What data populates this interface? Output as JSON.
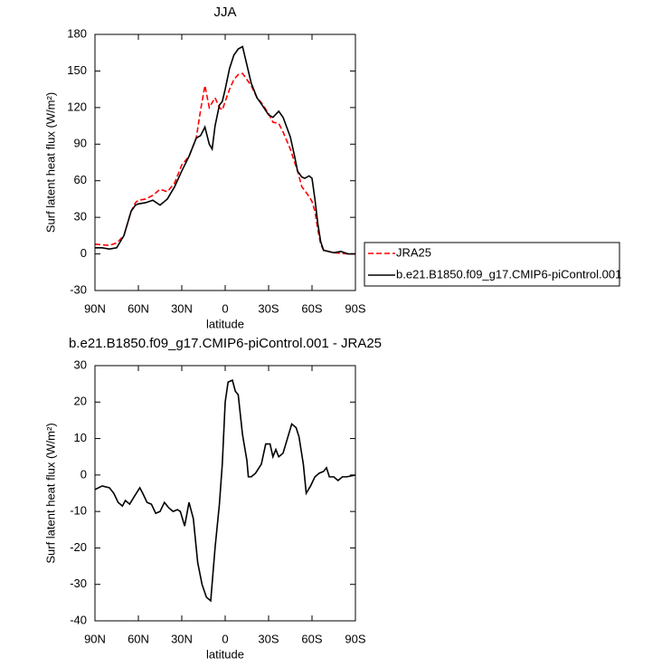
{
  "chart_data": [
    {
      "type": "line",
      "title": "JJA",
      "xlabel": "latitude",
      "ylabel": "Surf latent heat flux (W/m²)",
      "x": [
        90,
        85,
        80,
        75,
        70,
        65,
        62,
        60,
        55,
        50,
        45,
        40,
        35,
        30,
        25,
        20,
        17,
        14,
        11,
        9,
        7,
        4,
        2,
        0,
        -3,
        -6,
        -9,
        -12,
        -15,
        -18,
        -22,
        -25,
        -30,
        -33,
        -37,
        -40,
        -45,
        -48,
        -50,
        -53,
        -55,
        -58,
        -60,
        -62,
        -64,
        -66,
        -68,
        -75,
        -80,
        -85,
        -90
      ],
      "series": [
        {
          "name": "JRA25",
          "color": "#ff0000",
          "dash": "dashed",
          "values": [
            8,
            7.5,
            7,
            9,
            15,
            35,
            42,
            44,
            45,
            48,
            53,
            51,
            58,
            73,
            80,
            95,
            118,
            138,
            120,
            124,
            128,
            120,
            118,
            125,
            135,
            143,
            147,
            148,
            143,
            138,
            128,
            124,
            115,
            108,
            107,
            100,
            86,
            75,
            68,
            55,
            52,
            47,
            43,
            35,
            20,
            8,
            3,
            1,
            0.5,
            0,
            0
          ]
        },
        {
          "name": "b.e21.B1850.f09_g17.CMIP6-piControl.001",
          "color": "#000000",
          "dash": "solid",
          "values": [
            5,
            5,
            4,
            5,
            15,
            35,
            40,
            41,
            42,
            44,
            40,
            45,
            55,
            68,
            80,
            95,
            97,
            104,
            90,
            86,
            105,
            122,
            125,
            135,
            152,
            163,
            168,
            170,
            155,
            140,
            128,
            123,
            114,
            112,
            117,
            112,
            96,
            80,
            68,
            63,
            62,
            64,
            62,
            45,
            25,
            10,
            3,
            1,
            2,
            0,
            0
          ]
        }
      ],
      "xlim": [
        90,
        -90
      ],
      "xticks": [
        {
          "value": 90,
          "label": "90N"
        },
        {
          "value": 60,
          "label": "60N"
        },
        {
          "value": 30,
          "label": "30N"
        },
        0,
        {
          "value": -30,
          "label": "30S"
        },
        {
          "value": -60,
          "label": "60S"
        },
        {
          "value": -90,
          "label": "90S"
        }
      ],
      "ylim": [
        -30,
        180
      ],
      "yticks": [
        -30,
        0,
        30,
        60,
        90,
        120,
        150,
        180
      ],
      "legend": "outside-right"
    },
    {
      "type": "line",
      "title": "b.e21.B1850.f09_g17.CMIP6-piControl.001 - JRA25",
      "xlabel": "latitude",
      "ylabel": "Surf latent heat flux (W/m²)",
      "x": [
        90,
        85,
        80,
        77,
        74,
        71,
        69,
        66,
        63,
        59,
        57,
        54,
        51,
        48,
        45,
        42,
        39,
        36,
        33,
        31,
        28,
        25,
        22,
        19,
        16,
        13,
        10,
        7,
        4,
        2,
        0,
        -2,
        -5,
        -7,
        -9,
        -12,
        -15,
        -16,
        -18,
        -21,
        -25,
        -28,
        -31,
        -33,
        -35,
        -37,
        -40,
        -43,
        -46,
        -49,
        -51,
        -54,
        -56,
        -59,
        -62,
        -65,
        -68,
        -70,
        -72,
        -75,
        -78,
        -81,
        -84,
        -90
      ],
      "series": [
        {
          "color": "#000000",
          "dash": "solid",
          "values": [
            -4,
            -3,
            -3.5,
            -5,
            -7.5,
            -8.5,
            -7,
            -8,
            -6,
            -3.5,
            -5,
            -7.5,
            -8,
            -10.5,
            -10,
            -7.5,
            -9,
            -10,
            -9.5,
            -10,
            -14,
            -7.5,
            -12,
            -24,
            -30,
            -33.5,
            -34.5,
            -20,
            -8,
            3,
            20,
            25.5,
            26,
            23,
            22,
            11,
            4,
            -0.5,
            -0.5,
            0.5,
            3,
            8.5,
            8.5,
            5,
            7,
            5,
            6,
            10,
            14,
            13,
            10.5,
            3,
            -5,
            -3,
            -0.5,
            0.5,
            1,
            2,
            -0.5,
            -0.5,
            -1.5,
            -0.5,
            -0.5,
            0
          ]
        }
      ],
      "xlim": [
        90,
        -90
      ],
      "xticks": [
        {
          "value": 90,
          "label": "90N"
        },
        {
          "value": 60,
          "label": "60N"
        },
        {
          "value": 30,
          "label": "30N"
        },
        0,
        {
          "value": -30,
          "label": "30S"
        },
        {
          "value": -60,
          "label": "60S"
        },
        {
          "value": -90,
          "label": "90S"
        }
      ],
      "ylim": [
        -40,
        30
      ],
      "yticks": [
        -40,
        -30,
        -20,
        -10,
        0,
        10,
        20,
        30
      ]
    }
  ]
}
